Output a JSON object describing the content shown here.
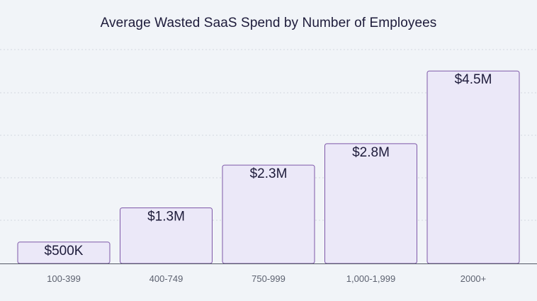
{
  "chart_data": {
    "type": "bar",
    "title": "Average Wasted SaaS Spend by Number of Employees",
    "xlabel": "",
    "ylabel": "",
    "categories": [
      "100-399",
      "400-749",
      "750-999",
      "1,000-1,999",
      "2000+"
    ],
    "values": [
      500000,
      1300000,
      2300000,
      2800000,
      4500000
    ],
    "value_labels": [
      "$500K",
      "$1.3M",
      "$2.3M",
      "$2.8M",
      "$4.5M"
    ],
    "ylim": [
      0,
      5000000
    ],
    "grid": true,
    "colors": {
      "bar_fill": "#ebe8f8",
      "bar_stroke": "#7e58a8",
      "background": "#f1f4f8"
    }
  }
}
